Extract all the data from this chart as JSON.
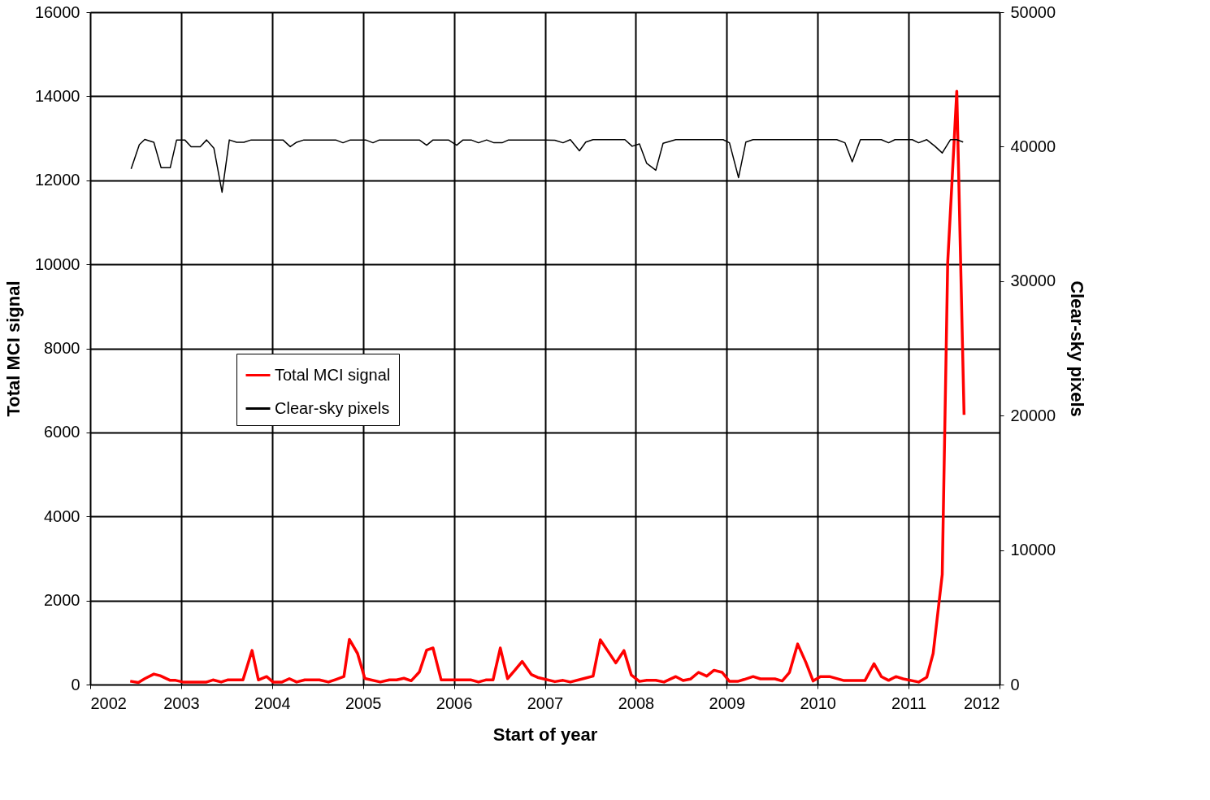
{
  "chart_data": {
    "type": "line",
    "xlabel": "Start of year",
    "ylabel": "Total MCI signal",
    "y2label": "Clear-sky pixels",
    "xlim": [
      2002,
      2012
    ],
    "xticks": [
      2002,
      2003,
      2004,
      2005,
      2006,
      2007,
      2008,
      2009,
      2010,
      2011,
      2012
    ],
    "ylim": [
      0,
      16000
    ],
    "yticks": [
      0,
      2000,
      4000,
      6000,
      8000,
      10000,
      12000,
      14000,
      16000
    ],
    "y2lim": [
      0,
      50000
    ],
    "y2ticks": [
      0,
      10000,
      20000,
      30000,
      40000,
      50000
    ],
    "grid": true,
    "legend": "left",
    "marker": "none",
    "line_style": "solid",
    "series": [
      {
        "name": "Total MCI signal",
        "color": "#ff0000",
        "axis": "y",
        "x": [
          2002.44,
          2002.53,
          2002.6,
          2002.7,
          2002.77,
          2002.88,
          2002.94,
          2003.02,
          2003.28,
          2003.35,
          2003.44,
          2003.51,
          2003.68,
          2003.78,
          2003.85,
          2003.94,
          2004.01,
          2004.11,
          2004.19,
          2004.27,
          2004.36,
          2004.52,
          2004.62,
          2004.7,
          2004.79,
          2004.85,
          2004.94,
          2005.02,
          2005.19,
          2005.29,
          2005.37,
          2005.45,
          2005.53,
          2005.62,
          2005.7,
          2005.77,
          2005.86,
          2006.19,
          2006.27,
          2006.35,
          2006.43,
          2006.51,
          2006.59,
          2006.67,
          2006.75,
          2006.85,
          2006.92,
          2007.11,
          2007.2,
          2007.28,
          2007.44,
          2007.53,
          2007.61,
          2007.78,
          2007.87,
          2007.95,
          2008.04,
          2008.12,
          2008.22,
          2008.31,
          2008.44,
          2008.52,
          2008.6,
          2008.69,
          2008.78,
          2008.86,
          2008.95,
          2009.03,
          2009.12,
          2009.19,
          2009.29,
          2009.37,
          2009.53,
          2009.61,
          2009.69,
          2009.78,
          2009.87,
          2009.95,
          2010.03,
          2010.13,
          2010.29,
          2010.52,
          2010.62,
          2010.7,
          2010.78,
          2010.86,
          2010.94,
          2011.11,
          2011.2,
          2011.27,
          2011.37,
          2011.43,
          2011.53,
          2011.61
        ],
        "values": [
          80,
          50,
          140,
          250,
          210,
          100,
          100,
          60,
          60,
          110,
          60,
          110,
          110,
          810,
          110,
          190,
          60,
          60,
          140,
          60,
          110,
          110,
          60,
          120,
          190,
          1075,
          740,
          145,
          60,
          110,
          110,
          150,
          90,
          300,
          820,
          870,
          110,
          110,
          60,
          110,
          110,
          870,
          140,
          340,
          550,
          240,
          170,
          70,
          100,
          60,
          150,
          200,
          1065,
          515,
          810,
          230,
          75,
          100,
          100,
          60,
          190,
          95,
          130,
          290,
          200,
          340,
          290,
          75,
          75,
          120,
          190,
          135,
          135,
          85,
          290,
          965,
          530,
          85,
          190,
          190,
          95,
          95,
          495,
          190,
          100,
          190,
          135,
          60,
          175,
          740,
          2620,
          10040,
          14120,
          6420
        ]
      },
      {
        "name": "Clear-sky pixels",
        "color": "#000000",
        "axis": "y2",
        "x": [
          2002.45,
          2002.54,
          2002.6,
          2002.7,
          2002.78,
          2002.88,
          2002.95,
          2003.04,
          2003.11,
          2003.21,
          2003.28,
          2003.36,
          2003.45,
          2003.53,
          2003.61,
          2003.69,
          2003.77,
          2004.12,
          2004.2,
          2004.27,
          2004.35,
          2004.7,
          2004.78,
          2004.86,
          2005.03,
          2005.11,
          2005.18,
          2005.62,
          2005.7,
          2005.77,
          2005.94,
          2006.03,
          2006.1,
          2006.19,
          2006.27,
          2006.36,
          2006.44,
          2006.53,
          2006.6,
          2007.0,
          2007.11,
          2007.2,
          2007.28,
          2007.38,
          2007.45,
          2007.53,
          2007.88,
          2007.96,
          2008.04,
          2008.12,
          2008.22,
          2008.3,
          2008.44,
          2008.96,
          2009.03,
          2009.13,
          2009.21,
          2009.29,
          2010.21,
          2010.3,
          2010.38,
          2010.47,
          2010.7,
          2010.78,
          2010.85,
          2011.04,
          2011.11,
          2011.2,
          2011.29,
          2011.37,
          2011.46,
          2011.53,
          2011.6
        ],
        "values": [
          38340,
          40150,
          40540,
          40330,
          38430,
          38430,
          40500,
          40500,
          40000,
          40000,
          40500,
          39890,
          36610,
          40500,
          40330,
          40330,
          40500,
          40500,
          40000,
          40330,
          40500,
          40500,
          40290,
          40500,
          40500,
          40290,
          40500,
          40500,
          40110,
          40500,
          40500,
          40110,
          40500,
          40500,
          40290,
          40500,
          40290,
          40290,
          40500,
          40500,
          40480,
          40290,
          40520,
          39690,
          40340,
          40520,
          40520,
          40030,
          40210,
          38760,
          38250,
          40250,
          40520,
          40520,
          40290,
          37700,
          40340,
          40520,
          40520,
          40290,
          38870,
          40520,
          40520,
          40290,
          40520,
          40520,
          40290,
          40520,
          40030,
          39530,
          40520,
          40520,
          40340
        ]
      }
    ]
  }
}
